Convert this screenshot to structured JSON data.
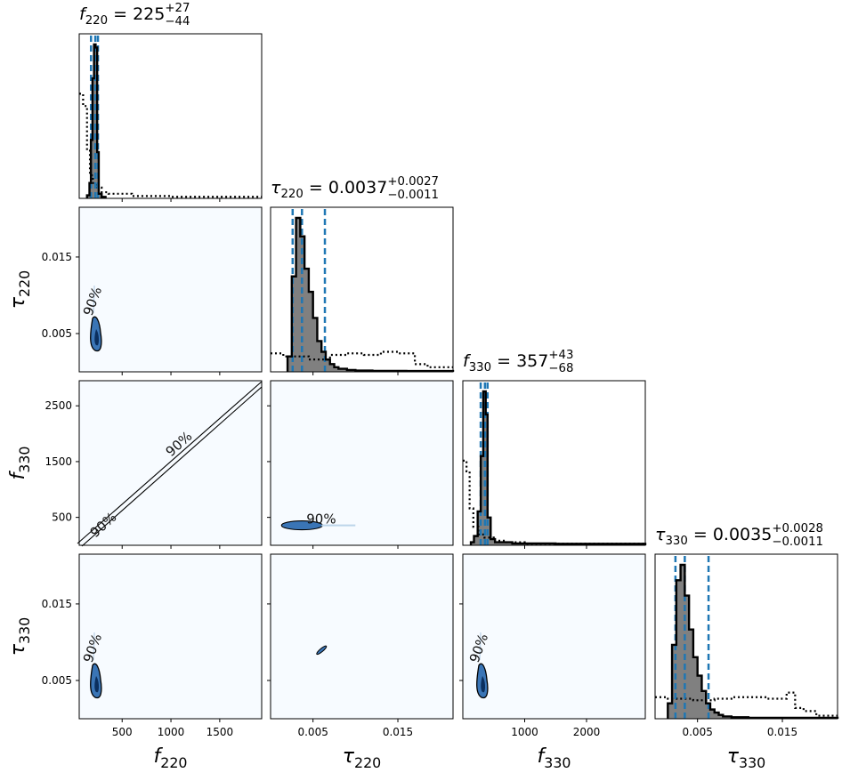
{
  "chart_data": {
    "type": "corner",
    "parameters": [
      {
        "name": "f_220",
        "axis_label": {
          "base": "f",
          "sub": "220"
        },
        "title": {
          "base": "f",
          "sub": "220",
          "value": "225",
          "plus": "+27",
          "minus": "−44"
        },
        "median": 225,
        "credible_interval": [
          181,
          252
        ],
        "range": [
          60,
          1930
        ],
        "ticks": [
          500,
          1000,
          1500
        ],
        "tick_labels": [
          "500",
          "1000",
          "1500"
        ]
      },
      {
        "name": "tau_220",
        "axis_label": {
          "base": "τ",
          "sub": "220"
        },
        "title": {
          "base": "τ",
          "sub": "220",
          "value": "0.0037",
          "plus": "+0.0027",
          "minus": "−0.0011"
        },
        "median": 0.0037,
        "credible_interval": [
          0.0026,
          0.0064
        ],
        "range": [
          0.0,
          0.0215
        ],
        "ticks": [
          0.005,
          0.015
        ],
        "tick_labels": [
          "0.005",
          "0.015"
        ]
      },
      {
        "name": "f_330",
        "axis_label": {
          "base": "f",
          "sub": "330"
        },
        "title": {
          "base": "f",
          "sub": "330",
          "value": "357",
          "plus": "+43",
          "minus": "−68"
        },
        "median": 357,
        "credible_interval": [
          289,
          400
        ],
        "range": [
          0,
          2950
        ],
        "ticks": [
          1000,
          2000
        ],
        "tick_labels": [
          "1000",
          "2000"
        ],
        "y_ticks": [
          500,
          1500,
          2500
        ],
        "y_tick_labels": [
          "500",
          "1500",
          "2500"
        ]
      },
      {
        "name": "tau_330",
        "axis_label": {
          "base": "τ",
          "sub": "330"
        },
        "title": {
          "base": "τ",
          "sub": "330",
          "value": "0.0035",
          "plus": "+0.0028",
          "minus": "−0.0011"
        },
        "median": 0.0035,
        "credible_interval": [
          0.0024,
          0.0063
        ],
        "range": [
          0.0,
          0.0215
        ],
        "ticks": [
          0.005,
          0.015
        ],
        "tick_labels": [
          "0.005",
          "0.015"
        ]
      }
    ],
    "posterior_histograms": [
      {
        "param": "f_220",
        "bins": [
          [
            140,
            165,
            0.02
          ],
          [
            165,
            180,
            0.1
          ],
          [
            180,
            196,
            0.38
          ],
          [
            196,
            212,
            0.78
          ],
          [
            212,
            228,
            1.0
          ],
          [
            228,
            244,
            0.98
          ],
          [
            244,
            260,
            0.3
          ],
          [
            260,
            290,
            0.03
          ],
          [
            290,
            330,
            0.01
          ]
        ]
      },
      {
        "param": "tau_220",
        "bins": [
          [
            0.002,
            0.0025,
            0.1
          ],
          [
            0.0025,
            0.003,
            0.62
          ],
          [
            0.003,
            0.0035,
            1.0
          ],
          [
            0.0035,
            0.004,
            0.88
          ],
          [
            0.004,
            0.0045,
            0.67
          ],
          [
            0.0045,
            0.005,
            0.52
          ],
          [
            0.005,
            0.0055,
            0.35
          ],
          [
            0.0055,
            0.006,
            0.2
          ],
          [
            0.006,
            0.0065,
            0.13
          ],
          [
            0.0065,
            0.007,
            0.08
          ],
          [
            0.007,
            0.0075,
            0.05
          ],
          [
            0.0075,
            0.008,
            0.03
          ],
          [
            0.008,
            0.009,
            0.02
          ],
          [
            0.009,
            0.01,
            0.012
          ],
          [
            0.01,
            0.012,
            0.008
          ],
          [
            0.012,
            0.016,
            0.006
          ],
          [
            0.016,
            0.0215,
            0.005
          ]
        ]
      },
      {
        "param": "f_330",
        "bins": [
          [
            130,
            180,
            0.02
          ],
          [
            180,
            240,
            0.06
          ],
          [
            240,
            290,
            0.22
          ],
          [
            290,
            330,
            0.58
          ],
          [
            330,
            370,
            1.0
          ],
          [
            370,
            400,
            0.85
          ],
          [
            400,
            450,
            0.18
          ],
          [
            450,
            520,
            0.04
          ],
          [
            520,
            800,
            0.02
          ],
          [
            800,
            1500,
            0.012
          ],
          [
            1500,
            2950,
            0.01
          ]
        ]
      },
      {
        "param": "tau_330",
        "bins": [
          [
            0.0015,
            0.002,
            0.1
          ],
          [
            0.002,
            0.0025,
            0.48
          ],
          [
            0.0025,
            0.003,
            0.9
          ],
          [
            0.003,
            0.0035,
            1.0
          ],
          [
            0.0035,
            0.004,
            0.8
          ],
          [
            0.004,
            0.0045,
            0.58
          ],
          [
            0.0045,
            0.005,
            0.4
          ],
          [
            0.005,
            0.0055,
            0.28
          ],
          [
            0.0055,
            0.006,
            0.18
          ],
          [
            0.006,
            0.0065,
            0.1
          ],
          [
            0.0065,
            0.007,
            0.06
          ],
          [
            0.007,
            0.0075,
            0.04
          ],
          [
            0.0075,
            0.008,
            0.025
          ],
          [
            0.008,
            0.009,
            0.015
          ],
          [
            0.009,
            0.011,
            0.01
          ],
          [
            0.011,
            0.015,
            0.006
          ],
          [
            0.015,
            0.0215,
            0.006
          ]
        ]
      }
    ],
    "prior_histograms": [
      {
        "param": "f_220",
        "bins": [
          [
            60,
            100,
            0.68
          ],
          [
            100,
            140,
            0.6
          ],
          [
            140,
            170,
            0.31
          ],
          [
            170,
            200,
            0.15
          ],
          [
            200,
            230,
            0.1
          ],
          [
            230,
            290,
            0.07
          ],
          [
            290,
            360,
            0.04
          ],
          [
            360,
            600,
            0.03
          ],
          [
            600,
            1000,
            0.015
          ],
          [
            1000,
            1930,
            0.01
          ]
        ]
      },
      {
        "param": "tau_220",
        "bins": [
          [
            0.0,
            0.0015,
            0.12
          ],
          [
            0.0015,
            0.0045,
            0.1
          ],
          [
            0.0045,
            0.007,
            0.08
          ],
          [
            0.007,
            0.009,
            0.11
          ],
          [
            0.009,
            0.011,
            0.12
          ],
          [
            0.011,
            0.013,
            0.11
          ],
          [
            0.013,
            0.015,
            0.13
          ],
          [
            0.015,
            0.017,
            0.12
          ],
          [
            0.017,
            0.0185,
            0.05
          ],
          [
            0.0185,
            0.0215,
            0.03
          ]
        ]
      },
      {
        "param": "f_330",
        "bins": [
          [
            0,
            60,
            0.55
          ],
          [
            60,
            110,
            0.48
          ],
          [
            110,
            170,
            0.24
          ],
          [
            170,
            250,
            0.12
          ],
          [
            250,
            350,
            0.07
          ],
          [
            350,
            500,
            0.05
          ],
          [
            500,
            700,
            0.03
          ],
          [
            700,
            1000,
            0.02
          ],
          [
            1000,
            2950,
            0.01
          ]
        ]
      },
      {
        "param": "tau_330",
        "bins": [
          [
            0.0,
            0.0015,
            0.14
          ],
          [
            0.0015,
            0.0045,
            0.13
          ],
          [
            0.0045,
            0.007,
            0.12
          ],
          [
            0.007,
            0.009,
            0.13
          ],
          [
            0.009,
            0.011,
            0.14
          ],
          [
            0.011,
            0.013,
            0.14
          ],
          [
            0.013,
            0.0155,
            0.13
          ],
          [
            0.0155,
            0.0165,
            0.17
          ],
          [
            0.0165,
            0.0175,
            0.07
          ],
          [
            0.0175,
            0.019,
            0.05
          ],
          [
            0.019,
            0.0215,
            0.02
          ]
        ]
      }
    ],
    "contour_label": "90%",
    "colors": {
      "posterior_fill": "#808080",
      "credible_line": "#1f77b4",
      "prior_line": "#000000",
      "density_background": "#f7fbff",
      "contour_fill": "#3a75b6",
      "contour_line": "#000000"
    },
    "legend": "none",
    "grid": false
  }
}
